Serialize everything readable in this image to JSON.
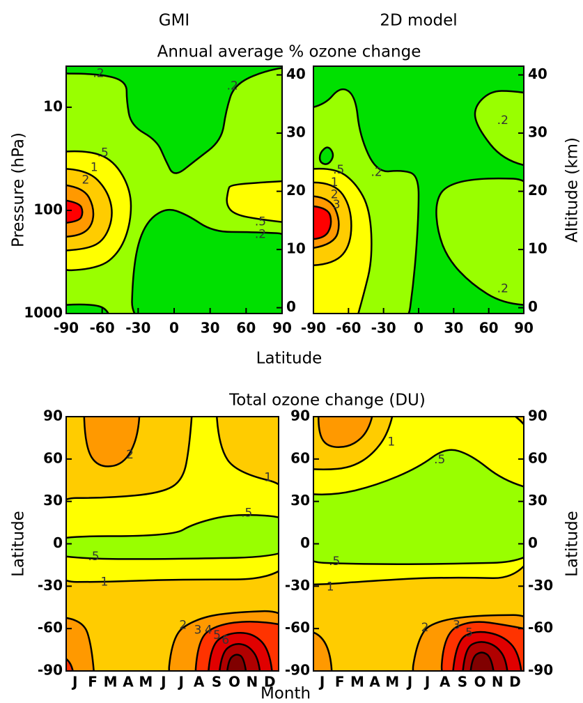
{
  "headings": {
    "top_title": "Annual average % ozone change",
    "top_xlabel": "Latitude",
    "bottom_title": "Total ozone change (DU)",
    "bottom_xlabel": "Month"
  },
  "chart_data": [
    {
      "type": "contour",
      "title": "GMI",
      "ylabel": "Pressure (hPa)",
      "xlim": [
        -90,
        90
      ],
      "xticks": [
        -90,
        -60,
        -30,
        0,
        30,
        60,
        90
      ],
      "ylim": [
        1000,
        4
      ],
      "yticks": [
        10,
        100,
        1000
      ],
      "ylog": true,
      "y2lim": [
        -1,
        41.5
      ],
      "y2ticks": [
        0,
        10,
        20,
        30,
        40
      ],
      "levels": [
        {
          "value": 0.2,
          "label": ".2"
        },
        {
          "value": 0.5,
          "label": ".5"
        },
        1,
        2,
        3
      ],
      "colors": [
        "#00e000",
        "#99ff00",
        "#ffff00",
        "#ffcc00",
        "#ff9900",
        "#ff0000"
      ]
    },
    {
      "type": "contour",
      "title": "2D model",
      "y2label": "Altitude (km)",
      "xlim": [
        -90,
        90
      ],
      "xticks": [
        -90,
        -60,
        -30,
        0,
        30,
        60,
        90
      ],
      "y2lim": [
        -1,
        41.5
      ],
      "y2ticks": [
        0,
        10,
        20,
        30,
        40
      ],
      "levels": [
        {
          "value": 0.2,
          "label": ".2"
        },
        {
          "value": 0.5,
          "label": ".5"
        },
        1,
        2,
        3
      ],
      "colors": [
        "#00e000",
        "#99ff00",
        "#ffff00",
        "#ffcc00",
        "#ff9900",
        "#ff0000"
      ]
    },
    {
      "type": "contour",
      "ylabel": "Latitude",
      "categories": [
        "J",
        "F",
        "M",
        "A",
        "M",
        "J",
        "J",
        "A",
        "S",
        "O",
        "N",
        "D"
      ],
      "ylim": [
        -90,
        90
      ],
      "yticks": [
        -90,
        -60,
        -30,
        0,
        30,
        60,
        90
      ],
      "levels": [
        {
          "value": 0.5,
          "label": ".5"
        },
        1,
        2,
        3,
        4,
        5,
        6
      ],
      "colors": [
        "#99ff00",
        "#ffff00",
        "#ffcc00",
        "#ff9900",
        "#ff3300",
        "#e00000",
        "#b00000",
        "#800000"
      ]
    },
    {
      "type": "contour",
      "y2label": "Latitude",
      "categories": [
        "J",
        "F",
        "M",
        "A",
        "M",
        "J",
        "J",
        "A",
        "S",
        "O",
        "N",
        "D"
      ],
      "ylim": [
        -90,
        90
      ],
      "yticks": [
        -90,
        -60,
        -30,
        0,
        30,
        60,
        90
      ],
      "y2lim": [
        -90,
        90
      ],
      "y2ticks": [
        -90,
        -60,
        -30,
        0,
        30,
        60,
        90
      ],
      "levels": [
        {
          "value": 0.5,
          "label": ".5"
        },
        1,
        2,
        3,
        4,
        5,
        6
      ],
      "colors": [
        "#99ff00",
        "#ffff00",
        "#ffcc00",
        "#ff9900",
        "#ff3300",
        "#e00000",
        "#b00000",
        "#800000"
      ]
    }
  ]
}
